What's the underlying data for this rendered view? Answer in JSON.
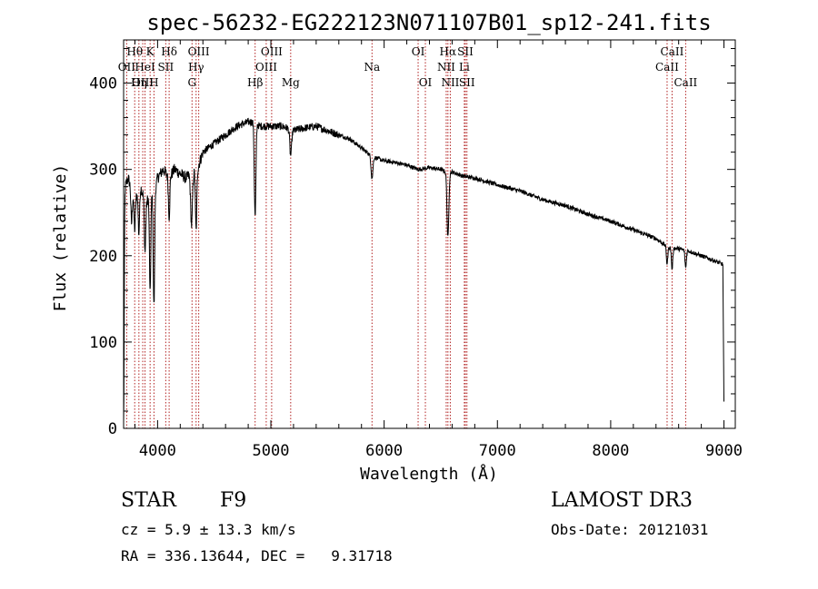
{
  "chart_data": {
    "type": "line",
    "title": "spec-56232-EG222123N071107B01_sp12-241.fits",
    "xlabel": "Wavelength (Å)",
    "ylabel": "Flux (relative)",
    "xlim": [
      3700,
      9100
    ],
    "ylim": [
      0,
      450
    ],
    "xticks": [
      4000,
      5000,
      6000,
      7000,
      8000,
      9000
    ],
    "yticks": [
      0,
      100,
      200,
      300,
      400
    ],
    "spectrum_anchors": {
      "x": [
        3700,
        3740,
        3800,
        3850,
        3900,
        3935,
        3965,
        4000,
        4050,
        4100,
        4150,
        4200,
        4250,
        4300,
        4350,
        4400,
        4500,
        4600,
        4700,
        4800,
        4861,
        4900,
        5000,
        5100,
        5200,
        5300,
        5400,
        5500,
        5600,
        5700,
        5800,
        5890,
        6000,
        6100,
        6200,
        6300,
        6400,
        6500,
        6563,
        6600,
        6700,
        6800,
        7000,
        7200,
        7400,
        7600,
        7800,
        8000,
        8200,
        8400,
        8500,
        8600,
        8700,
        8800,
        8900,
        8990,
        9000
      ],
      "y": [
        275,
        290,
        265,
        280,
        260,
        275,
        270,
        290,
        300,
        290,
        300,
        295,
        290,
        295,
        300,
        320,
        330,
        340,
        350,
        355,
        355,
        350,
        350,
        350,
        345,
        348,
        350,
        345,
        340,
        335,
        325,
        315,
        310,
        308,
        305,
        300,
        302,
        300,
        296,
        297,
        292,
        290,
        282,
        275,
        265,
        258,
        248,
        240,
        230,
        220,
        210,
        208,
        205,
        200,
        195,
        190,
        30
      ]
    },
    "absorption_dips": [
      {
        "x": 3700,
        "depth": 270,
        "width": 5
      },
      {
        "x": 3770,
        "depth": 40,
        "width": 6
      },
      {
        "x": 3798,
        "depth": 35,
        "width": 6
      },
      {
        "x": 3835,
        "depth": 50,
        "width": 6
      },
      {
        "x": 3889,
        "depth": 60,
        "width": 6
      },
      {
        "x": 3934,
        "depth": 120,
        "width": 6
      },
      {
        "x": 3968,
        "depth": 130,
        "width": 6
      },
      {
        "x": 4102,
        "depth": 45,
        "width": 6
      },
      {
        "x": 4300,
        "depth": 60,
        "width": 8
      },
      {
        "x": 4340,
        "depth": 70,
        "width": 6
      },
      {
        "x": 4861,
        "depth": 110,
        "width": 7
      },
      {
        "x": 5175,
        "depth": 30,
        "width": 8
      },
      {
        "x": 5893,
        "depth": 25,
        "width": 8
      },
      {
        "x": 6563,
        "depth": 75,
        "width": 8
      },
      {
        "x": 8498,
        "depth": 20,
        "width": 6
      },
      {
        "x": 8542,
        "depth": 25,
        "width": 6
      },
      {
        "x": 8662,
        "depth": 20,
        "width": 6
      }
    ],
    "spectral_lines": [
      {
        "label": "Hθ",
        "x": 3798,
        "row": 1
      },
      {
        "label": "OII",
        "x": 3727,
        "row": 2
      },
      {
        "label": "OIII",
        "x": 3869,
        "row": 3
      },
      {
        "label": "Hη",
        "x": 3835,
        "row": 3
      },
      {
        "label": "HeI",
        "x": 3889,
        "row": 2
      },
      {
        "label": "K",
        "x": 3934,
        "row": 1
      },
      {
        "label": "H",
        "x": 3968,
        "row": 3
      },
      {
        "label": "SII",
        "x": 4072,
        "row": 2
      },
      {
        "label": "Hδ",
        "x": 4102,
        "row": 1
      },
      {
        "label": "OIII",
        "x": 4363,
        "row": 1
      },
      {
        "label": "Hγ",
        "x": 4340,
        "row": 2
      },
      {
        "label": "G",
        "x": 4304,
        "row": 3
      },
      {
        "label": "Hβ",
        "x": 4861,
        "row": 3
      },
      {
        "label": "OIII",
        "x": 5007,
        "row": 1
      },
      {
        "label": "OIII",
        "x": 4959,
        "row": 2
      },
      {
        "label": "Mg",
        "x": 5175,
        "row": 3
      },
      {
        "label": "Na",
        "x": 5893,
        "row": 2
      },
      {
        "label": "OI",
        "x": 6300,
        "row": 1
      },
      {
        "label": "OI",
        "x": 6364,
        "row": 3
      },
      {
        "label": "Hα",
        "x": 6563,
        "row": 1
      },
      {
        "label": "NII",
        "x": 6548,
        "row": 2
      },
      {
        "label": "NII",
        "x": 6584,
        "row": 3
      },
      {
        "label": "SII",
        "x": 6717,
        "row": 1
      },
      {
        "label": "Li",
        "x": 6708,
        "row": 2
      },
      {
        "label": "SII",
        "x": 6731,
        "row": 3
      },
      {
        "label": "CaII",
        "x": 8542,
        "row": 1
      },
      {
        "label": "CaII",
        "x": 8498,
        "row": 2
      },
      {
        "label": "CaII",
        "x": 8662,
        "row": 3
      }
    ]
  },
  "info": {
    "class": "STAR",
    "subclass": "F9",
    "survey": "LAMOST DR3",
    "cz": "cz = 5.9 ± 13.3 km/s",
    "obs_date": "Obs-Date: 20121031",
    "coords": "RA = 336.13644, DEC =   9.31718"
  },
  "colors": {
    "line_marker": "#b22222",
    "spectrum": "#000000"
  }
}
